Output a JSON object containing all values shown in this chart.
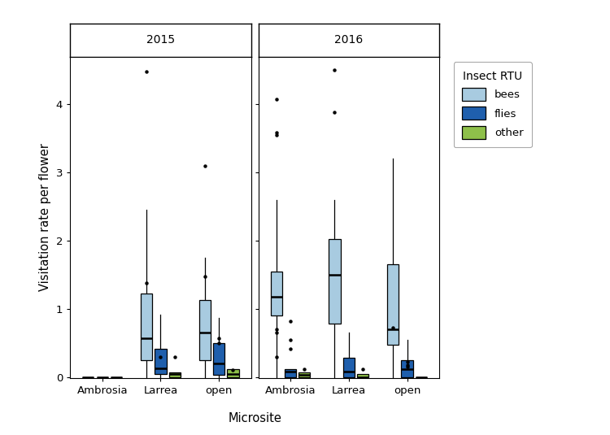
{
  "title": "Insect RTU",
  "ylabel": "Visitation rate per flower",
  "xlabel": "Microsite",
  "facets": [
    "2015",
    "2016"
  ],
  "microsites": [
    "Ambrosia",
    "Larrea",
    "open"
  ],
  "insect_types": [
    "bees",
    "flies",
    "other"
  ],
  "colors": {
    "bees": "#A8CBE0",
    "flies": "#1F5FAD",
    "other": "#8EC04A"
  },
  "ylim": [
    -0.02,
    4.7
  ],
  "yticks": [
    0,
    1,
    2,
    3,
    4
  ],
  "boxplot_data": {
    "2015": {
      "Ambrosia": {
        "bees": {
          "q1": 0.0,
          "median": 0.0,
          "q3": 0.0,
          "whislo": 0.0,
          "whishi": 0.0,
          "fliers": []
        },
        "flies": {
          "q1": 0.0,
          "median": 0.0,
          "q3": 0.0,
          "whislo": 0.0,
          "whishi": 0.0,
          "fliers": []
        },
        "other": {
          "q1": 0.0,
          "median": 0.0,
          "q3": 0.0,
          "whislo": 0.0,
          "whishi": 0.0,
          "fliers": []
        }
      },
      "Larrea": {
        "bees": {
          "q1": 0.25,
          "median": 0.57,
          "q3": 1.22,
          "whislo": 0.0,
          "whishi": 2.45,
          "fliers": [
            1.38,
            4.48
          ]
        },
        "flies": {
          "q1": 0.05,
          "median": 0.13,
          "q3": 0.42,
          "whislo": 0.0,
          "whishi": 0.92,
          "fliers": [
            0.3
          ]
        },
        "other": {
          "q1": 0.0,
          "median": 0.04,
          "q3": 0.07,
          "whislo": 0.0,
          "whishi": 0.07,
          "fliers": [
            0.3
          ]
        }
      },
      "open": {
        "bees": {
          "q1": 0.25,
          "median": 0.65,
          "q3": 1.13,
          "whislo": 0.0,
          "whishi": 1.75,
          "fliers": [
            1.48,
            3.1
          ]
        },
        "flies": {
          "q1": 0.03,
          "median": 0.2,
          "q3": 0.5,
          "whislo": 0.0,
          "whishi": 0.87,
          "fliers": [
            0.5,
            0.57
          ]
        },
        "other": {
          "q1": 0.0,
          "median": 0.05,
          "q3": 0.12,
          "whislo": 0.0,
          "whishi": 0.12,
          "fliers": [
            0.1
          ]
        }
      }
    },
    "2016": {
      "Ambrosia": {
        "bees": {
          "q1": 0.9,
          "median": 1.18,
          "q3": 1.55,
          "whislo": 0.0,
          "whishi": 2.6,
          "fliers": [
            0.3,
            0.65,
            0.7,
            3.55,
            3.58,
            4.08
          ]
        },
        "flies": {
          "q1": 0.0,
          "median": 0.08,
          "q3": 0.12,
          "whislo": 0.0,
          "whishi": 0.12,
          "fliers": [
            0.42,
            0.55,
            0.82
          ]
        },
        "other": {
          "q1": 0.0,
          "median": 0.03,
          "q3": 0.07,
          "whislo": 0.0,
          "whishi": 0.07,
          "fliers": [
            0.12
          ]
        }
      },
      "Larrea": {
        "bees": {
          "q1": 0.78,
          "median": 1.5,
          "q3": 2.02,
          "whislo": 0.0,
          "whishi": 2.6,
          "fliers": [
            3.88,
            4.5
          ]
        },
        "flies": {
          "q1": 0.0,
          "median": 0.08,
          "q3": 0.28,
          "whislo": 0.0,
          "whishi": 0.65,
          "fliers": []
        },
        "other": {
          "q1": 0.0,
          "median": 0.0,
          "q3": 0.05,
          "whislo": 0.0,
          "whishi": 0.05,
          "fliers": [
            0.12
          ]
        }
      },
      "open": {
        "bees": {
          "q1": 0.48,
          "median": 0.7,
          "q3": 1.65,
          "whislo": 0.0,
          "whishi": 3.2,
          "fliers": [
            0.72
          ]
        },
        "flies": {
          "q1": 0.0,
          "median": 0.12,
          "q3": 0.25,
          "whislo": 0.0,
          "whishi": 0.55,
          "fliers": [
            0.15,
            0.18,
            0.22
          ]
        },
        "other": {
          "q1": 0.0,
          "median": 0.0,
          "q3": 0.0,
          "whislo": 0.0,
          "whishi": 0.0,
          "fliers": []
        }
      }
    }
  }
}
